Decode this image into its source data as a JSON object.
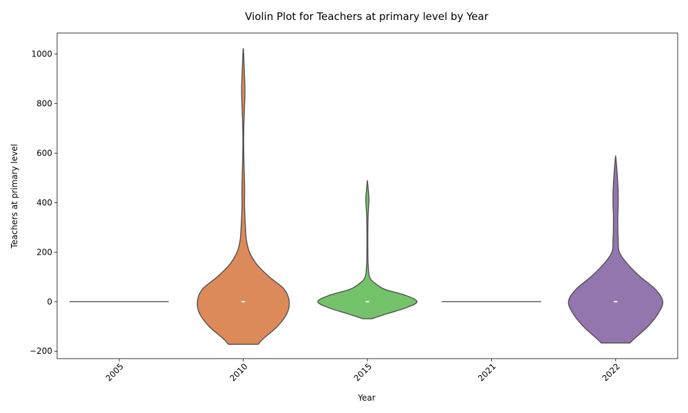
{
  "chart_data": {
    "type": "violin",
    "title": "Violin Plot for Teachers at primary level by Year",
    "xlabel": "Year",
    "ylabel": "Teachers at primary level",
    "categories": [
      "2005",
      "2010",
      "2015",
      "2021",
      "2022"
    ],
    "ylim": [
      -230,
      1085
    ],
    "yticks": [
      -200,
      0,
      200,
      400,
      600,
      800,
      1000
    ],
    "grid": false,
    "colors": [
      "#4f4f4f",
      "#dd8a5a",
      "#74c36a",
      "#4f4f4f",
      "#9276ad"
    ],
    "violins": [
      {
        "category": "2005",
        "flat": true,
        "value": 0,
        "halfwidth": 0.4
      },
      {
        "category": "2010",
        "median": 0,
        "ymin": -172,
        "ymax": 1020,
        "profile": [
          [
            -172,
            0.24
          ],
          [
            -150,
            0.32
          ],
          [
            -100,
            0.55
          ],
          [
            -50,
            0.7
          ],
          [
            0,
            0.74
          ],
          [
            50,
            0.66
          ],
          [
            100,
            0.42
          ],
          [
            150,
            0.22
          ],
          [
            200,
            0.1
          ],
          [
            250,
            0.05
          ],
          [
            300,
            0.035
          ],
          [
            350,
            0.025
          ],
          [
            400,
            0.02
          ],
          [
            450,
            0.022
          ],
          [
            500,
            0.018
          ],
          [
            550,
            0.012
          ],
          [
            600,
            0.008
          ],
          [
            650,
            0.006
          ],
          [
            700,
            0.008
          ],
          [
            750,
            0.014
          ],
          [
            800,
            0.022
          ],
          [
            850,
            0.027
          ],
          [
            900,
            0.022
          ],
          [
            950,
            0.014
          ],
          [
            1000,
            0.006
          ],
          [
            1020,
            0.002
          ]
        ]
      },
      {
        "category": "2015",
        "median": 0,
        "ymin": -69,
        "ymax": 485,
        "profile": [
          [
            -69,
            0.07
          ],
          [
            -50,
            0.3
          ],
          [
            -25,
            0.62
          ],
          [
            0,
            0.8
          ],
          [
            25,
            0.62
          ],
          [
            50,
            0.28
          ],
          [
            75,
            0.12
          ],
          [
            100,
            0.035
          ],
          [
            150,
            0.012
          ],
          [
            200,
            0.008
          ],
          [
            250,
            0.007
          ],
          [
            300,
            0.008
          ],
          [
            350,
            0.012
          ],
          [
            400,
            0.024
          ],
          [
            420,
            0.025
          ],
          [
            450,
            0.015
          ],
          [
            485,
            0.002
          ]
        ]
      },
      {
        "category": "2021",
        "flat": true,
        "value": 0,
        "halfwidth": 0.4
      },
      {
        "category": "2022",
        "median": 0,
        "ymin": -167,
        "ymax": 585,
        "profile": [
          [
            -167,
            0.23
          ],
          [
            -150,
            0.3
          ],
          [
            -100,
            0.52
          ],
          [
            -50,
            0.68
          ],
          [
            0,
            0.76
          ],
          [
            50,
            0.64
          ],
          [
            100,
            0.4
          ],
          [
            150,
            0.2
          ],
          [
            200,
            0.06
          ],
          [
            250,
            0.042
          ],
          [
            300,
            0.036
          ],
          [
            350,
            0.036
          ],
          [
            400,
            0.042
          ],
          [
            450,
            0.04
          ],
          [
            500,
            0.03
          ],
          [
            550,
            0.015
          ],
          [
            585,
            0.002
          ]
        ]
      }
    ]
  }
}
